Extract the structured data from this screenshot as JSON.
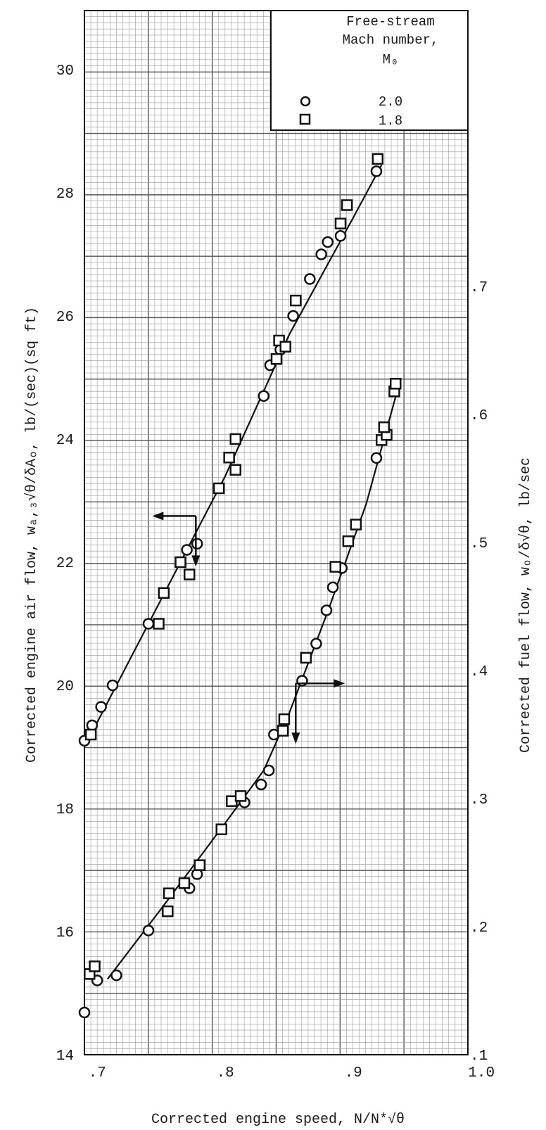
{
  "chart_data": {
    "type": "scatter",
    "title": "",
    "xlabel": "Corrected engine speed, N/N*√θ",
    "ylabel_left": "Corrected engine air flow, wₐ,₃√θ/δAₒ, lb/(sec)(sq ft)",
    "ylabel_right": "Corrected fuel flow, wₒ/δ√θ, lb/sec",
    "xlim": [
      0.69,
      1.0
    ],
    "ylim_left": [
      14,
      31
    ],
    "ylim_right": [
      0.1,
      0.75
    ],
    "x_ticks": [
      ".7",
      ".8",
      ".9",
      "1.0"
    ],
    "y_left_ticks": [
      "14",
      "16",
      "18",
      "20",
      "22",
      "24",
      "26",
      "28",
      "30"
    ],
    "y_right_ticks": [
      ".1",
      ".2",
      ".3",
      ".4",
      ".5",
      ".6",
      ".7"
    ],
    "grid": true,
    "legend": {
      "position": "top-right",
      "title_lines": [
        "Free-stream",
        "Mach number,",
        "M₀"
      ],
      "entries": [
        {
          "marker": "circle",
          "label": "2.0"
        },
        {
          "marker": "square",
          "label": "1.8"
        }
      ]
    },
    "series": [
      {
        "name": "2.0",
        "marker": "circle",
        "axis": "left",
        "group": "air flow",
        "points": [
          [
            0.69,
            19.1
          ],
          [
            0.696,
            19.35
          ],
          [
            0.703,
            19.65
          ],
          [
            0.712,
            20.0
          ],
          [
            0.74,
            21.0
          ],
          [
            0.77,
            22.2
          ],
          [
            0.778,
            22.3
          ],
          [
            0.83,
            24.7
          ],
          [
            0.835,
            25.2
          ],
          [
            0.843,
            25.45
          ],
          [
            0.853,
            26.0
          ],
          [
            0.866,
            26.6
          ],
          [
            0.875,
            27.0
          ],
          [
            0.88,
            27.2
          ],
          [
            0.89,
            27.3
          ],
          [
            0.918,
            28.35
          ]
        ]
      },
      {
        "name": "1.8",
        "marker": "square",
        "axis": "left",
        "group": "air flow",
        "points": [
          [
            0.695,
            19.2
          ],
          [
            0.748,
            21.0
          ],
          [
            0.752,
            21.5
          ],
          [
            0.765,
            22.0
          ],
          [
            0.772,
            21.8
          ],
          [
            0.795,
            23.2
          ],
          [
            0.803,
            23.7
          ],
          [
            0.808,
            23.5
          ],
          [
            0.808,
            24.0
          ],
          [
            0.84,
            25.3
          ],
          [
            0.842,
            25.6
          ],
          [
            0.847,
            25.5
          ],
          [
            0.855,
            26.25
          ],
          [
            0.89,
            27.5
          ],
          [
            0.895,
            27.8
          ],
          [
            0.919,
            28.55
          ]
        ]
      },
      {
        "name": "2.0",
        "marker": "circle",
        "axis": "right",
        "group": "fuel flow",
        "points": [
          [
            0.69,
            0.133
          ],
          [
            0.7,
            0.158
          ],
          [
            0.715,
            0.162
          ],
          [
            0.74,
            0.197
          ],
          [
            0.772,
            0.23
          ],
          [
            0.778,
            0.241
          ],
          [
            0.815,
            0.297
          ],
          [
            0.828,
            0.311
          ],
          [
            0.834,
            0.322
          ],
          [
            0.838,
            0.35
          ],
          [
            0.86,
            0.392
          ],
          [
            0.871,
            0.421
          ],
          [
            0.879,
            0.447
          ],
          [
            0.884,
            0.465
          ],
          [
            0.891,
            0.48
          ],
          [
            0.918,
            0.566
          ]
        ]
      },
      {
        "name": "1.8",
        "marker": "square",
        "axis": "right",
        "group": "fuel flow",
        "points": [
          [
            0.694,
            0.163
          ],
          [
            0.698,
            0.169
          ],
          [
            0.755,
            0.212
          ],
          [
            0.756,
            0.226
          ],
          [
            0.768,
            0.234
          ],
          [
            0.78,
            0.248
          ],
          [
            0.797,
            0.276
          ],
          [
            0.805,
            0.298
          ],
          [
            0.812,
            0.302
          ],
          [
            0.845,
            0.353
          ],
          [
            0.846,
            0.362
          ],
          [
            0.863,
            0.41
          ],
          [
            0.886,
            0.481
          ],
          [
            0.896,
            0.501
          ],
          [
            0.902,
            0.514
          ],
          [
            0.922,
            0.58
          ],
          [
            0.926,
            0.584
          ],
          [
            0.924,
            0.59
          ],
          [
            0.932,
            0.618
          ],
          [
            0.933,
            0.624
          ]
        ]
      }
    ],
    "fit_lines": [
      {
        "axis": "left",
        "points": [
          [
            0.69,
            19.0
          ],
          [
            0.75,
            21.4
          ],
          [
            0.8,
            23.4
          ],
          [
            0.85,
            25.7
          ],
          [
            0.9,
            27.6
          ],
          [
            0.922,
            28.45
          ]
        ]
      },
      {
        "axis": "right",
        "points": [
          [
            0.708,
            0.159
          ],
          [
            0.75,
            0.214
          ],
          [
            0.8,
            0.281
          ],
          [
            0.83,
            0.322
          ],
          [
            0.85,
            0.367
          ],
          [
            0.88,
            0.446
          ],
          [
            0.91,
            0.53
          ],
          [
            0.935,
            0.621
          ]
        ]
      }
    ],
    "annotations": [
      {
        "kind": "axis-indicator-arrow",
        "points_to": "left axis",
        "at": [
          0.777,
          22.75
        ]
      },
      {
        "kind": "axis-indicator-arrow",
        "points_to": "right axis",
        "at": [
          0.855,
          0.39
        ]
      }
    ]
  }
}
